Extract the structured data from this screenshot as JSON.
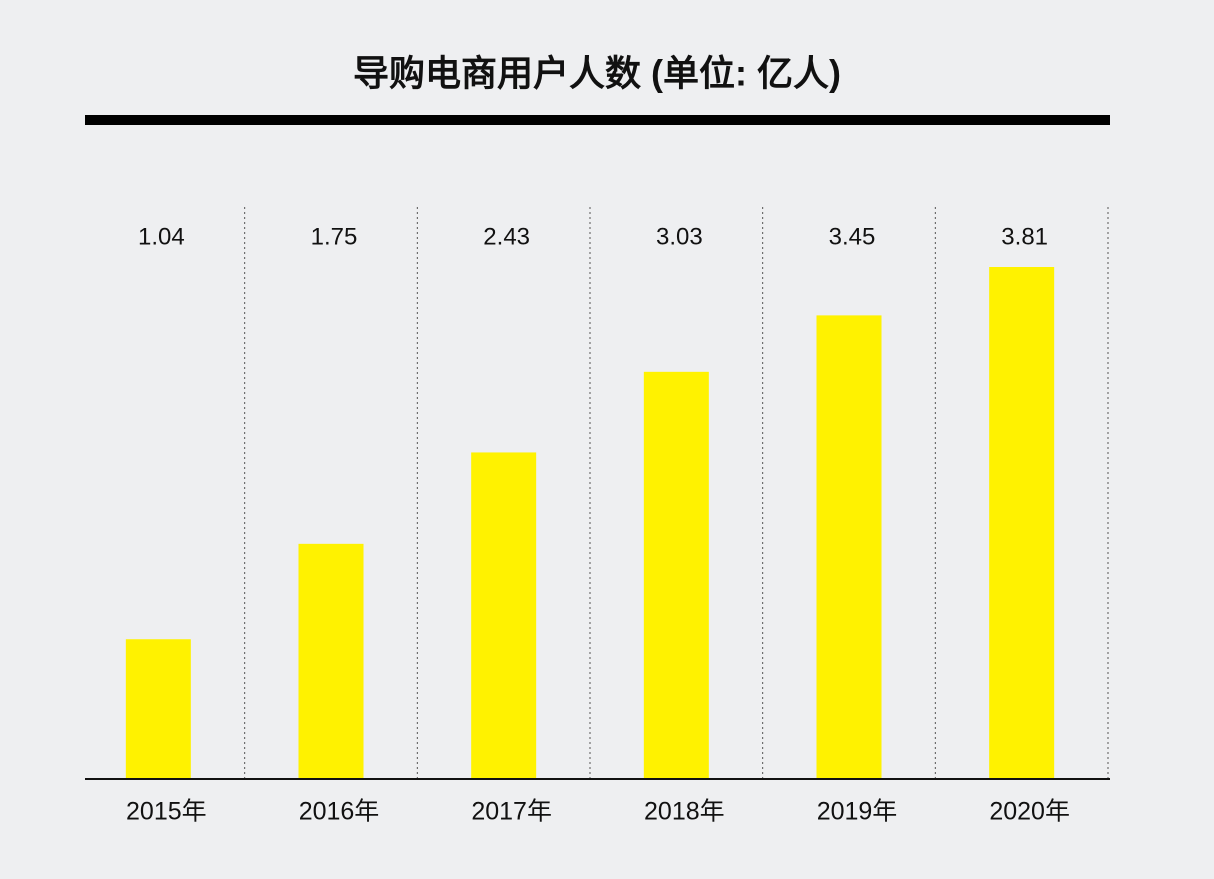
{
  "chart_data": {
    "type": "bar",
    "title": "导购电商用户人数 (单位: 亿人)",
    "categories": [
      "2015年",
      "2016年",
      "2017年",
      "2018年",
      "2019年",
      "2020年"
    ],
    "values": [
      1.04,
      1.75,
      2.43,
      3.03,
      3.45,
      3.81
    ],
    "color": "#fff200"
  }
}
